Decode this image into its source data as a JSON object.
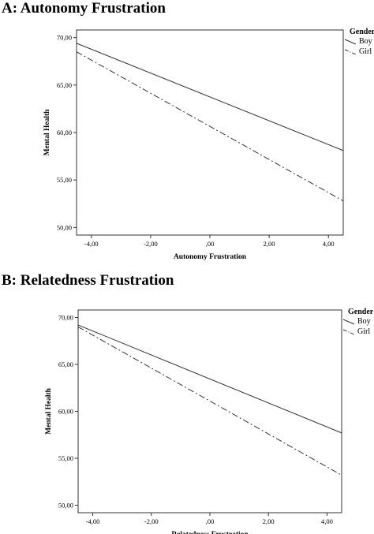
{
  "chart_data": [
    {
      "type": "line",
      "title": "A: Autonomy Frustration",
      "xlabel": "Autonomy Frustration",
      "ylabel": "Mental Health",
      "xlim": [
        -4.5,
        4.5
      ],
      "ylim": [
        49.2,
        70.8
      ],
      "xticks": [
        -4,
        -2,
        0,
        2,
        4
      ],
      "xtick_labels": [
        "-4,00",
        "-2,00",
        ",00",
        "2,00",
        "4,00"
      ],
      "yticks": [
        50,
        55,
        60,
        65,
        70
      ],
      "ytick_labels": [
        "50,00",
        "55,00",
        "60,00",
        "65,00",
        "70,00"
      ],
      "grid": false,
      "legend": {
        "title": "Gender",
        "position": "top-right"
      },
      "series": [
        {
          "name": "Boy",
          "style": "solid",
          "x": [
            -4.5,
            4.5
          ],
          "y": [
            69.4,
            58.1
          ]
        },
        {
          "name": "Girl",
          "style": "dash-dot",
          "x": [
            -4.5,
            4.5
          ],
          "y": [
            68.5,
            52.8
          ]
        }
      ]
    },
    {
      "type": "line",
      "title": "B: Relatedness Frustration",
      "xlabel": "Relatedness Frustration",
      "ylabel": "Mental Health",
      "xlim": [
        -4.5,
        4.5
      ],
      "ylim": [
        49.2,
        70.8
      ],
      "xticks": [
        -4,
        -2,
        0,
        2,
        4
      ],
      "xtick_labels": [
        "-4,00",
        "-2,00",
        ",00",
        "2,00",
        "4,00"
      ],
      "yticks": [
        50,
        55,
        60,
        65,
        70
      ],
      "ytick_labels": [
        "50,00",
        "55,00",
        "60,00",
        "65,00",
        "70,00"
      ],
      "grid": false,
      "legend": {
        "title": "Gender",
        "position": "top-right"
      },
      "series": [
        {
          "name": "Boy",
          "style": "solid",
          "x": [
            -4.5,
            4.5
          ],
          "y": [
            69.2,
            57.7
          ]
        },
        {
          "name": "Girl",
          "style": "dash-dot",
          "x": [
            -4.5,
            4.5
          ],
          "y": [
            69.0,
            53.2
          ]
        }
      ]
    }
  ]
}
